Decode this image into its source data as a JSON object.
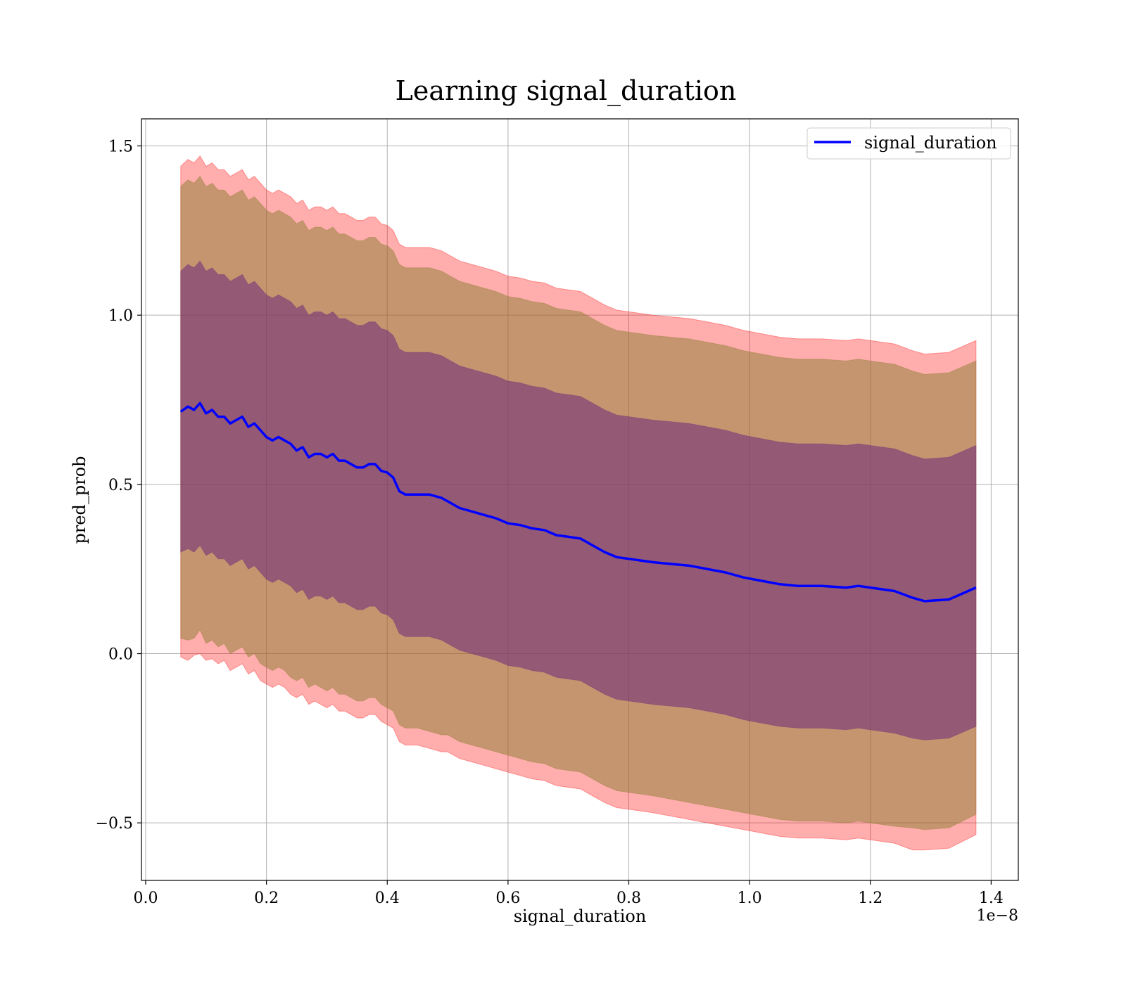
{
  "chart_data": {
    "type": "line",
    "title": "Learning signal_duration",
    "xlabel": "signal_duration",
    "ylabel": "pred_prob",
    "x_offset_label": "1e−8",
    "xlim": [
      -0.007,
      1.445
    ],
    "ylim": [
      -0.67,
      1.58
    ],
    "x_ticks": [
      0.0,
      0.2,
      0.4,
      0.6,
      0.8,
      1.0,
      1.2,
      1.4
    ],
    "x_tick_labels": [
      "0.0",
      "0.2",
      "0.4",
      "0.6",
      "0.8",
      "1.0",
      "1.2",
      "1.4"
    ],
    "y_ticks": [
      -0.5,
      0.0,
      0.5,
      1.0,
      1.5
    ],
    "y_tick_labels": [
      "−0.5",
      "0.0",
      "0.5",
      "1.0",
      "1.5"
    ],
    "grid": true,
    "legend_position": "top-right",
    "colors": {
      "mean_line": "#0000ff",
      "outer_band": "#ff0000",
      "middle_band": "#8c7d32",
      "inner_band": "#6b2a7a",
      "grid": "#b0b0b0"
    },
    "series": [
      {
        "name": "signal_duration",
        "x": [
          0.058,
          0.07,
          0.08,
          0.09,
          0.1,
          0.11,
          0.12,
          0.13,
          0.14,
          0.15,
          0.16,
          0.17,
          0.18,
          0.19,
          0.2,
          0.21,
          0.22,
          0.23,
          0.24,
          0.25,
          0.26,
          0.27,
          0.28,
          0.29,
          0.3,
          0.31,
          0.32,
          0.33,
          0.34,
          0.35,
          0.36,
          0.37,
          0.38,
          0.39,
          0.4,
          0.41,
          0.42,
          0.43,
          0.45,
          0.47,
          0.49,
          0.5,
          0.52,
          0.54,
          0.56,
          0.58,
          0.6,
          0.62,
          0.64,
          0.66,
          0.68,
          0.7,
          0.72,
          0.74,
          0.76,
          0.78,
          0.8,
          0.82,
          0.84,
          0.87,
          0.9,
          0.93,
          0.96,
          0.99,
          1.02,
          1.05,
          1.08,
          1.12,
          1.16,
          1.18,
          1.2,
          1.24,
          1.27,
          1.29,
          1.33,
          1.375
        ],
        "values": [
          0.715,
          0.73,
          0.72,
          0.74,
          0.71,
          0.72,
          0.7,
          0.7,
          0.68,
          0.69,
          0.7,
          0.67,
          0.68,
          0.66,
          0.64,
          0.63,
          0.64,
          0.63,
          0.62,
          0.6,
          0.61,
          0.58,
          0.59,
          0.59,
          0.58,
          0.59,
          0.57,
          0.57,
          0.56,
          0.55,
          0.55,
          0.56,
          0.56,
          0.54,
          0.535,
          0.52,
          0.48,
          0.47,
          0.47,
          0.47,
          0.46,
          0.45,
          0.43,
          0.42,
          0.41,
          0.4,
          0.385,
          0.38,
          0.37,
          0.365,
          0.35,
          0.345,
          0.34,
          0.32,
          0.3,
          0.285,
          0.28,
          0.275,
          0.27,
          0.265,
          0.26,
          0.25,
          0.24,
          0.225,
          0.215,
          0.205,
          0.2,
          0.2,
          0.195,
          0.2,
          0.195,
          0.185,
          0.165,
          0.155,
          0.16,
          0.195
        ]
      }
    ],
    "bands": [
      {
        "x": [
          0.058,
          0.07,
          0.08,
          0.09,
          0.1,
          0.11,
          0.12,
          0.13,
          0.14,
          0.15,
          0.16,
          0.17,
          0.18,
          0.19,
          0.2,
          0.21,
          0.22,
          0.23,
          0.24,
          0.25,
          0.26,
          0.27,
          0.28,
          0.29,
          0.3,
          0.31,
          0.32,
          0.33,
          0.34,
          0.35,
          0.36,
          0.37,
          0.38,
          0.39,
          0.4,
          0.41,
          0.42,
          0.43,
          0.45,
          0.47,
          0.49,
          0.5,
          0.52,
          0.54,
          0.56,
          0.58,
          0.6,
          0.62,
          0.64,
          0.66,
          0.68,
          0.7,
          0.72,
          0.74,
          0.76,
          0.78,
          0.8,
          0.82,
          0.84,
          0.87,
          0.9,
          0.93,
          0.96,
          0.99,
          1.02,
          1.05,
          1.08,
          1.12,
          1.16,
          1.18,
          1.2,
          1.24,
          1.27,
          1.29,
          1.33,
          1.375
        ],
        "lower": [
          -0.01,
          -0.02,
          -0.005,
          0.0,
          -0.02,
          -0.015,
          -0.03,
          -0.02,
          -0.05,
          -0.04,
          -0.03,
          -0.06,
          -0.05,
          -0.08,
          -0.09,
          -0.1,
          -0.09,
          -0.1,
          -0.12,
          -0.13,
          -0.12,
          -0.15,
          -0.14,
          -0.15,
          -0.16,
          -0.15,
          -0.17,
          -0.17,
          -0.18,
          -0.19,
          -0.19,
          -0.18,
          -0.18,
          -0.2,
          -0.21,
          -0.22,
          -0.26,
          -0.27,
          -0.27,
          -0.28,
          -0.29,
          -0.29,
          -0.31,
          -0.32,
          -0.33,
          -0.34,
          -0.35,
          -0.36,
          -0.37,
          -0.375,
          -0.39,
          -0.395,
          -0.4,
          -0.42,
          -0.44,
          -0.455,
          -0.46,
          -0.465,
          -0.47,
          -0.48,
          -0.49,
          -0.5,
          -0.51,
          -0.52,
          -0.53,
          -0.54,
          -0.545,
          -0.545,
          -0.55,
          -0.545,
          -0.55,
          -0.56,
          -0.58,
          -0.58,
          -0.575,
          -0.535
        ],
        "upper": [
          1.44,
          1.46,
          1.45,
          1.47,
          1.44,
          1.45,
          1.43,
          1.43,
          1.41,
          1.42,
          1.43,
          1.4,
          1.41,
          1.39,
          1.37,
          1.36,
          1.37,
          1.36,
          1.35,
          1.33,
          1.34,
          1.31,
          1.32,
          1.32,
          1.31,
          1.32,
          1.3,
          1.3,
          1.29,
          1.28,
          1.28,
          1.29,
          1.29,
          1.27,
          1.265,
          1.25,
          1.21,
          1.2,
          1.2,
          1.2,
          1.19,
          1.18,
          1.16,
          1.15,
          1.14,
          1.13,
          1.115,
          1.11,
          1.1,
          1.095,
          1.08,
          1.075,
          1.07,
          1.05,
          1.03,
          1.015,
          1.01,
          1.005,
          1.0,
          0.995,
          0.99,
          0.98,
          0.97,
          0.955,
          0.945,
          0.935,
          0.93,
          0.93,
          0.925,
          0.93,
          0.925,
          0.915,
          0.895,
          0.885,
          0.89,
          0.925
        ]
      },
      {
        "x": [
          0.058,
          0.07,
          0.08,
          0.09,
          0.1,
          0.11,
          0.12,
          0.13,
          0.14,
          0.15,
          0.16,
          0.17,
          0.18,
          0.19,
          0.2,
          0.21,
          0.22,
          0.23,
          0.24,
          0.25,
          0.26,
          0.27,
          0.28,
          0.29,
          0.3,
          0.31,
          0.32,
          0.33,
          0.34,
          0.35,
          0.36,
          0.37,
          0.38,
          0.39,
          0.4,
          0.41,
          0.42,
          0.43,
          0.45,
          0.47,
          0.49,
          0.5,
          0.52,
          0.54,
          0.56,
          0.58,
          0.6,
          0.62,
          0.64,
          0.66,
          0.68,
          0.7,
          0.72,
          0.74,
          0.76,
          0.78,
          0.8,
          0.82,
          0.84,
          0.87,
          0.9,
          0.93,
          0.96,
          0.99,
          1.02,
          1.05,
          1.08,
          1.12,
          1.16,
          1.18,
          1.2,
          1.24,
          1.27,
          1.29,
          1.33,
          1.375
        ],
        "lower": [
          0.045,
          0.04,
          0.045,
          0.07,
          0.03,
          0.04,
          0.02,
          0.03,
          0.0,
          0.01,
          0.02,
          -0.01,
          0.0,
          -0.03,
          -0.04,
          -0.05,
          -0.04,
          -0.05,
          -0.07,
          -0.08,
          -0.07,
          -0.1,
          -0.09,
          -0.1,
          -0.11,
          -0.1,
          -0.12,
          -0.12,
          -0.13,
          -0.14,
          -0.14,
          -0.13,
          -0.13,
          -0.15,
          -0.16,
          -0.17,
          -0.21,
          -0.22,
          -0.22,
          -0.23,
          -0.24,
          -0.24,
          -0.26,
          -0.27,
          -0.28,
          -0.29,
          -0.3,
          -0.31,
          -0.32,
          -0.325,
          -0.34,
          -0.345,
          -0.35,
          -0.37,
          -0.39,
          -0.405,
          -0.41,
          -0.415,
          -0.42,
          -0.43,
          -0.44,
          -0.45,
          -0.46,
          -0.47,
          -0.48,
          -0.49,
          -0.495,
          -0.495,
          -0.5,
          -0.495,
          -0.5,
          -0.51,
          -0.515,
          -0.52,
          -0.515,
          -0.475
        ],
        "upper": [
          1.38,
          1.4,
          1.39,
          1.41,
          1.38,
          1.39,
          1.37,
          1.37,
          1.35,
          1.36,
          1.37,
          1.34,
          1.35,
          1.33,
          1.31,
          1.3,
          1.31,
          1.3,
          1.29,
          1.27,
          1.28,
          1.25,
          1.26,
          1.26,
          1.25,
          1.26,
          1.24,
          1.24,
          1.23,
          1.22,
          1.22,
          1.23,
          1.23,
          1.21,
          1.205,
          1.19,
          1.15,
          1.14,
          1.14,
          1.14,
          1.13,
          1.12,
          1.1,
          1.09,
          1.08,
          1.07,
          1.055,
          1.05,
          1.04,
          1.035,
          1.02,
          1.015,
          1.01,
          0.99,
          0.97,
          0.955,
          0.95,
          0.945,
          0.94,
          0.935,
          0.93,
          0.92,
          0.91,
          0.895,
          0.885,
          0.875,
          0.87,
          0.87,
          0.865,
          0.87,
          0.865,
          0.855,
          0.835,
          0.825,
          0.83,
          0.865
        ]
      },
      {
        "x": [
          0.058,
          0.07,
          0.08,
          0.09,
          0.1,
          0.11,
          0.12,
          0.13,
          0.14,
          0.15,
          0.16,
          0.17,
          0.18,
          0.19,
          0.2,
          0.21,
          0.22,
          0.23,
          0.24,
          0.25,
          0.26,
          0.27,
          0.28,
          0.29,
          0.3,
          0.31,
          0.32,
          0.33,
          0.34,
          0.35,
          0.36,
          0.37,
          0.38,
          0.39,
          0.4,
          0.41,
          0.42,
          0.43,
          0.45,
          0.47,
          0.49,
          0.5,
          0.52,
          0.54,
          0.56,
          0.58,
          0.6,
          0.62,
          0.64,
          0.66,
          0.68,
          0.7,
          0.72,
          0.74,
          0.76,
          0.78,
          0.8,
          0.82,
          0.84,
          0.87,
          0.9,
          0.93,
          0.96,
          0.99,
          1.02,
          1.05,
          1.08,
          1.12,
          1.16,
          1.18,
          1.2,
          1.24,
          1.27,
          1.29,
          1.33,
          1.375
        ],
        "lower": [
          0.3,
          0.31,
          0.3,
          0.32,
          0.29,
          0.3,
          0.28,
          0.28,
          0.26,
          0.27,
          0.28,
          0.25,
          0.26,
          0.24,
          0.22,
          0.21,
          0.22,
          0.21,
          0.2,
          0.18,
          0.19,
          0.16,
          0.17,
          0.17,
          0.16,
          0.17,
          0.15,
          0.15,
          0.14,
          0.13,
          0.13,
          0.14,
          0.14,
          0.12,
          0.115,
          0.1,
          0.06,
          0.05,
          0.05,
          0.05,
          0.04,
          0.03,
          0.01,
          0.0,
          -0.01,
          -0.02,
          -0.035,
          -0.04,
          -0.05,
          -0.055,
          -0.07,
          -0.075,
          -0.08,
          -0.1,
          -0.12,
          -0.135,
          -0.14,
          -0.145,
          -0.15,
          -0.155,
          -0.16,
          -0.17,
          -0.18,
          -0.195,
          -0.205,
          -0.215,
          -0.22,
          -0.22,
          -0.225,
          -0.22,
          -0.225,
          -0.235,
          -0.25,
          -0.255,
          -0.25,
          -0.215
        ],
        "upper": [
          1.13,
          1.15,
          1.14,
          1.16,
          1.13,
          1.14,
          1.12,
          1.12,
          1.1,
          1.11,
          1.12,
          1.09,
          1.1,
          1.08,
          1.06,
          1.05,
          1.06,
          1.05,
          1.04,
          1.02,
          1.03,
          1.0,
          1.01,
          1.01,
          1.0,
          1.01,
          0.99,
          0.99,
          0.98,
          0.97,
          0.97,
          0.98,
          0.98,
          0.96,
          0.955,
          0.94,
          0.9,
          0.89,
          0.89,
          0.89,
          0.88,
          0.87,
          0.85,
          0.84,
          0.83,
          0.82,
          0.805,
          0.8,
          0.79,
          0.785,
          0.77,
          0.765,
          0.76,
          0.74,
          0.72,
          0.705,
          0.7,
          0.695,
          0.69,
          0.685,
          0.68,
          0.67,
          0.66,
          0.645,
          0.635,
          0.625,
          0.62,
          0.62,
          0.615,
          0.62,
          0.615,
          0.605,
          0.585,
          0.575,
          0.58,
          0.615
        ]
      }
    ]
  }
}
